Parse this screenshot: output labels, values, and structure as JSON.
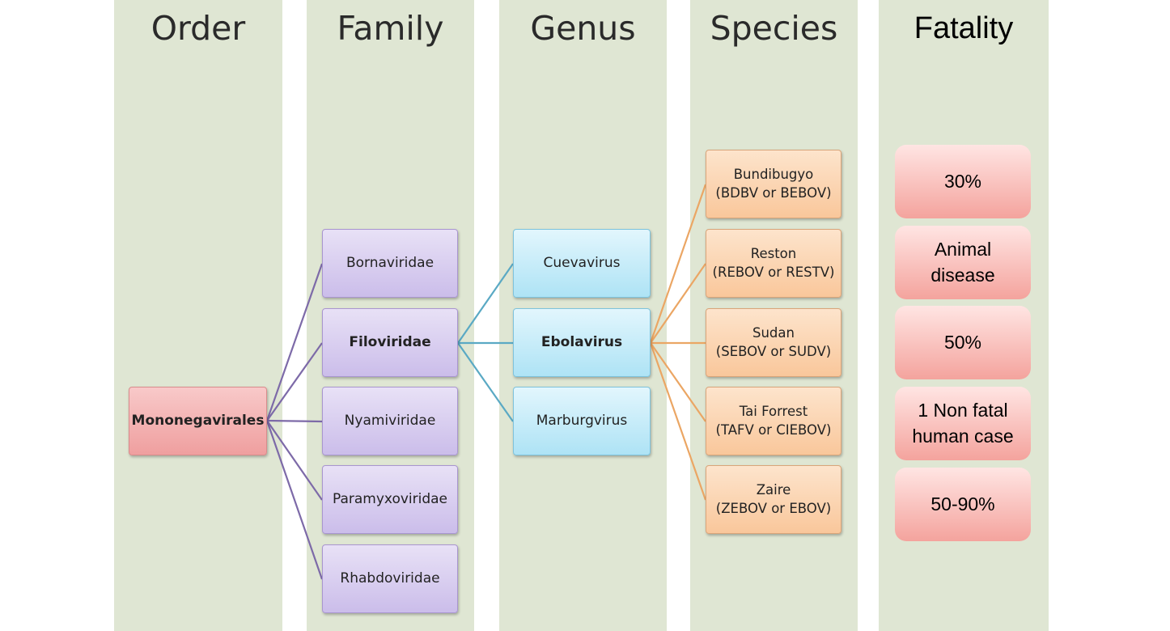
{
  "columns": {
    "order": "Order",
    "family": "Family",
    "genus": "Genus",
    "species": "Species",
    "fatality": "Fatality"
  },
  "order_node": "Mononegavirales",
  "families": [
    "Bornaviridae",
    "Filoviridae",
    "Nyamiviridae",
    "Paramyxoviridae",
    "Rhabdoviridae"
  ],
  "genera": [
    "Cuevavirus",
    "Ebolavirus",
    "Marburgvirus"
  ],
  "species": [
    "Bundibugyo\n(BDBV or BEBOV)",
    "Reston\n(REBOV or RESTV)",
    "Sudan\n(SEBOV or SUDV)",
    "Tai Forrest\n(TAFV or CIEBOV)",
    "Zaire\n(ZEBOV or EBOV)"
  ],
  "fatality": [
    "30%",
    "Animal\ndisease",
    "50%",
    "1 Non fatal\nhuman case",
    "50-90%"
  ],
  "colors": {
    "background_panel": "#dfe6d3",
    "family_lines": "#7d6aa8",
    "genus_lines": "#5aa9c4",
    "species_lines": "#eba664"
  }
}
